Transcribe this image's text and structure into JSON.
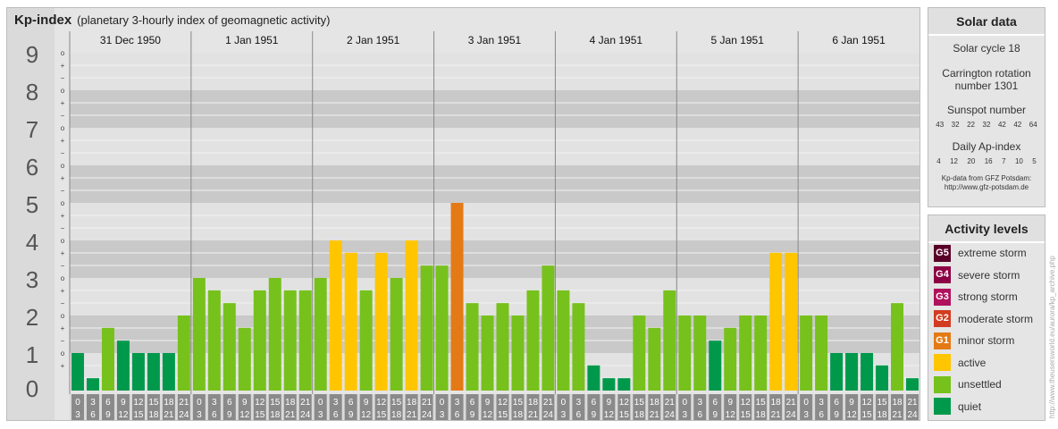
{
  "title": "Kp-index",
  "subtitle": "(planetary 3-hourly index of geomagnetic activity)",
  "colors": {
    "quiet": "#00994c",
    "unsettled": "#77c11c",
    "active": "#ffc600",
    "minor": "#e47a15",
    "moderate": "#d23c20",
    "strong": "#b0105c",
    "severe": "#8c0044",
    "extreme": "#580028"
  },
  "chart_data": {
    "type": "bar",
    "ylim": [
      0,
      9
    ],
    "y_ticks": [
      "0",
      "1",
      "2",
      "3",
      "4",
      "5",
      "6",
      "7",
      "8",
      "9"
    ],
    "sub_ticks": [
      "+",
      "o",
      "−"
    ],
    "days": [
      "31 Dec 1950",
      "1 Jan 1951",
      "2 Jan 1951",
      "3 Jan 1951",
      "4 Jan 1951",
      "5 Jan 1951",
      "6 Jan 1951"
    ],
    "hour_labels": [
      [
        "0",
        "3"
      ],
      [
        "3",
        "6"
      ],
      [
        "6",
        "9"
      ],
      [
        "9",
        "12"
      ],
      [
        "12",
        "15"
      ],
      [
        "15",
        "18"
      ],
      [
        "18",
        "21"
      ],
      [
        "21",
        "24"
      ]
    ],
    "values": [
      1.0,
      0.33,
      1.67,
      1.33,
      1.0,
      1.0,
      1.0,
      2.0,
      3.0,
      2.67,
      2.33,
      1.67,
      2.67,
      3.0,
      2.67,
      2.67,
      3.0,
      4.0,
      3.67,
      2.67,
      3.67,
      3.0,
      4.0,
      3.33,
      3.33,
      5.0,
      2.33,
      2.0,
      2.33,
      2.0,
      2.67,
      3.33,
      2.67,
      2.33,
      0.67,
      0.33,
      0.33,
      2.0,
      1.67,
      2.67,
      2.0,
      2.0,
      1.33,
      1.67,
      2.0,
      2.0,
      3.67,
      3.67,
      2.0,
      2.0,
      1.0,
      1.0,
      1.0,
      0.67,
      2.33,
      0.33
    ]
  },
  "solar": {
    "title": "Solar data",
    "cycle": "Solar cycle 18",
    "carrington_l1": "Carrington rotation",
    "carrington_l2": "number 1301",
    "sunspot_title": "Sunspot number",
    "sunspots": [
      "43",
      "32",
      "22",
      "32",
      "42",
      "42",
      "64"
    ],
    "ap_title": "Daily Ap-index",
    "ap": [
      "4",
      "12",
      "20",
      "16",
      "7",
      "10",
      "5"
    ],
    "credit_l1": "Kp-data from GFZ Potsdam:",
    "credit_l2": "http://www.gfz-potsdam.de"
  },
  "levels": {
    "title": "Activity levels",
    "items": [
      {
        "code": "G5",
        "label": "extreme storm",
        "color": "#580028"
      },
      {
        "code": "G4",
        "label": "severe storm",
        "color": "#8c0044"
      },
      {
        "code": "G3",
        "label": "strong storm",
        "color": "#b0105c"
      },
      {
        "code": "G2",
        "label": "moderate storm",
        "color": "#d23c20"
      },
      {
        "code": "G1",
        "label": "minor storm",
        "color": "#e47a15"
      },
      {
        "code": "",
        "label": "active",
        "color": "#ffc600"
      },
      {
        "code": "",
        "label": "unsettled",
        "color": "#77c11c"
      },
      {
        "code": "",
        "label": "quiet",
        "color": "#00994c"
      }
    ]
  },
  "watermark": "http://www.theusersworld.eu/aurora/kp_archive.php"
}
